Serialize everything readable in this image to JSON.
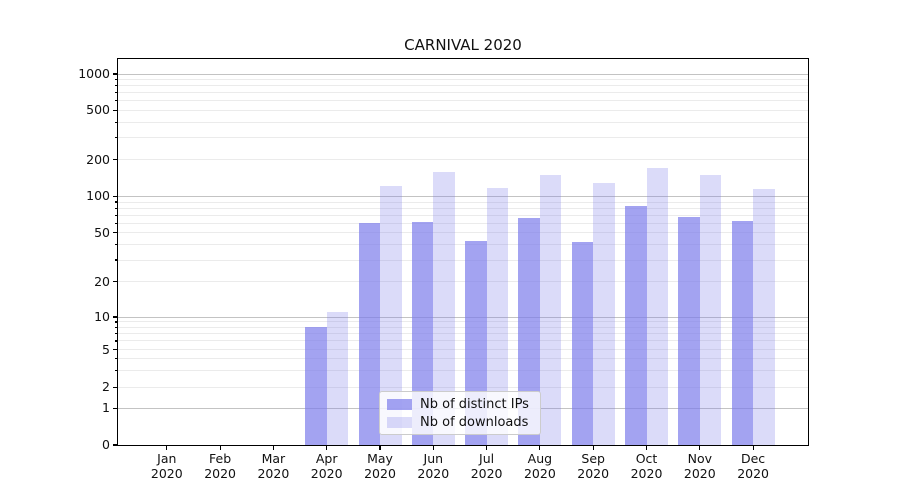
{
  "chart_data": {
    "type": "bar",
    "title": "CARNIVAL 2020",
    "categories": [
      "Jan",
      "Feb",
      "Mar",
      "Apr",
      "May",
      "Jun",
      "Jul",
      "Aug",
      "Sep",
      "Oct",
      "Nov",
      "Dec"
    ],
    "x_tick_second_line": "2020",
    "series": [
      {
        "name": "Nb of distinct IPs",
        "color": "#7c7ceb",
        "alpha": 0.7,
        "solid_equivalent": "#a9a9f4",
        "values": [
          0,
          0,
          0,
          8,
          60,
          61,
          43,
          66,
          42,
          84,
          67,
          63
        ]
      },
      {
        "name": "Nb of downloads",
        "color": "#7c7ceb",
        "alpha": 0.28,
        "solid_equivalent": "#dadaf9",
        "values": [
          0,
          0,
          0,
          11,
          122,
          158,
          118,
          150,
          128,
          172,
          151,
          116
        ]
      }
    ],
    "y_ticks": [
      0,
      1,
      2,
      5,
      10,
      20,
      50,
      100,
      200,
      500,
      1000
    ],
    "y_minor_ticks": [
      3,
      4,
      6,
      7,
      8,
      9,
      30,
      40,
      60,
      70,
      80,
      90,
      300,
      400,
      600,
      700,
      800,
      900
    ],
    "yscale": "symlog (log above 1, linear 0-1)",
    "ylim": [
      0,
      1300
    ],
    "xlabel": "",
    "ylabel": "",
    "grid": "both, horizontal only",
    "legend_position": "lower center",
    "colors": {
      "major_grid": "#c3c3c3",
      "minor_grid": "#ebebeb",
      "spine": "#000000",
      "background": "#ffffff"
    }
  }
}
